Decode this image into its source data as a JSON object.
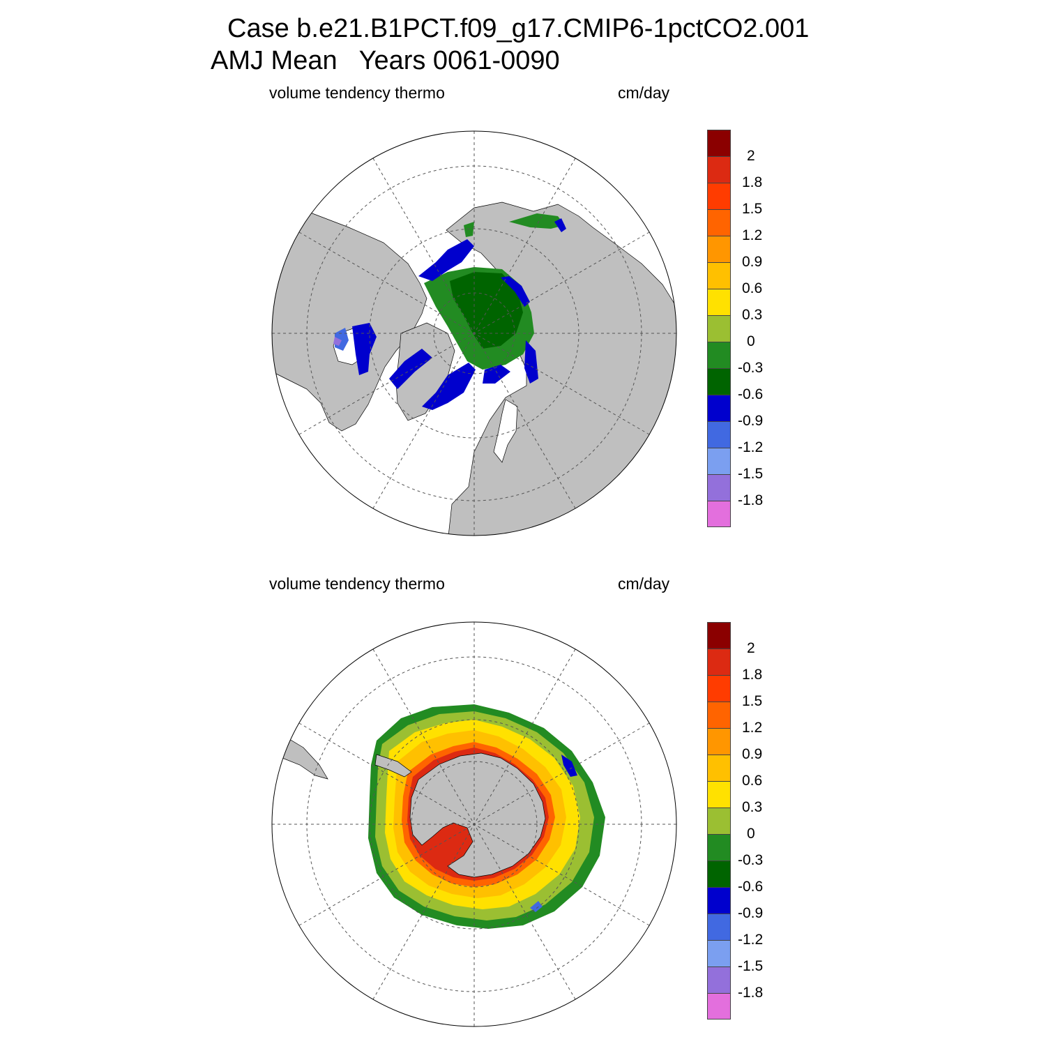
{
  "title_line1": "Case b.e21.B1PCT.f09_g17.CMIP6-1pctCO2.001",
  "title_line2": "AMJ Mean   Years 0061-0090",
  "panels": [
    {
      "id": "north",
      "left_label": "volume tendency thermo",
      "right_label": "cm/day"
    },
    {
      "id": "south",
      "left_label": "volume tendency thermo",
      "right_label": "cm/day"
    }
  ],
  "colorbar": {
    "labels": [
      "2",
      "1.8",
      "1.5",
      "1.2",
      "0.9",
      "0.6",
      "0.3",
      "0",
      "-0.3",
      "-0.6",
      "-0.9",
      "-1.2",
      "-1.5",
      "-1.8"
    ],
    "colors": [
      "#8b0000",
      "#dc2a12",
      "#ff3c00",
      "#ff6400",
      "#ff9600",
      "#ffc000",
      "#ffe100",
      "#9bbf32",
      "#228b22",
      "#006400",
      "#0000cd",
      "#4169e1",
      "#7b9ff0",
      "#9370db",
      "#e36fdd"
    ]
  },
  "colors": {
    "land": "#bfbfbf",
    "ocean": "#ffffff",
    "grid": "#555555"
  }
}
